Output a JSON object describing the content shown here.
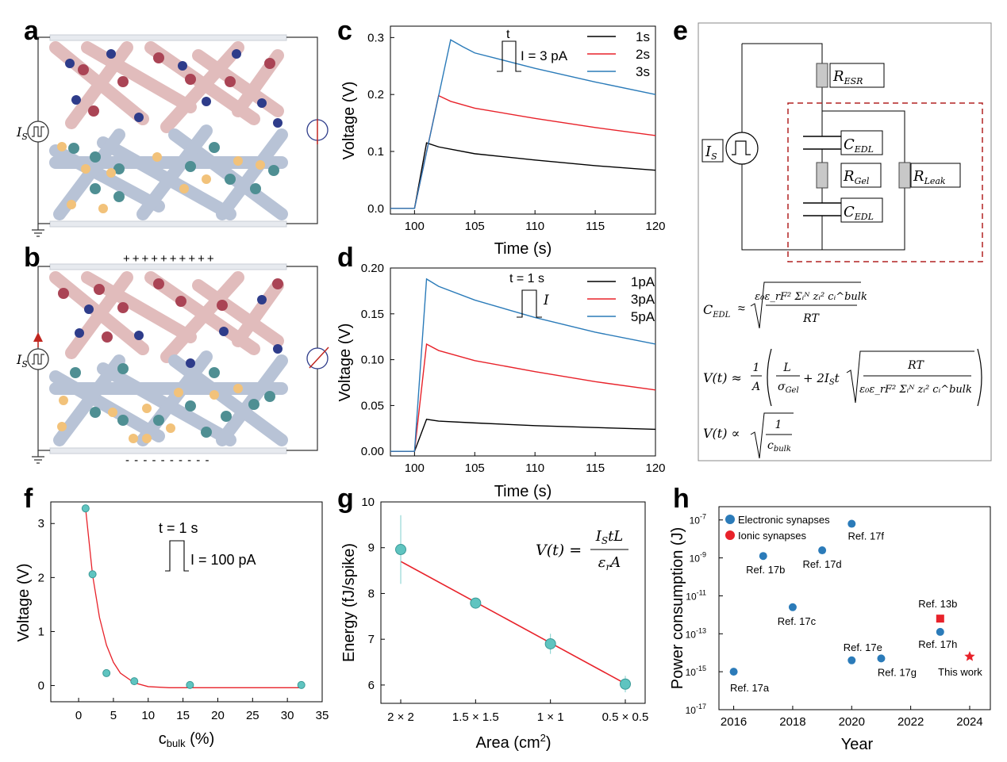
{
  "panels": {
    "a": {
      "letter": "a",
      "source_label": "I",
      "source_sub": "S"
    },
    "b": {
      "letter": "b",
      "source_label": "I",
      "source_sub": "S",
      "top_charges": "++++++++++",
      "bottom_charges": "- - - - - - - - - -"
    },
    "c": {
      "letter": "c",
      "xlabel": "Time (s)",
      "ylabel": "Voltage (V)",
      "inset_t": "t",
      "inset_label": "I = 3 pA",
      "xticks": [
        "100",
        "105",
        "110",
        "115",
        "120"
      ],
      "yticks": [
        "0.0",
        "0.1",
        "0.2",
        "0.3"
      ],
      "legend": [
        "1s",
        "2s",
        "3s"
      ]
    },
    "d": {
      "letter": "d",
      "xlabel": "Time (s)",
      "ylabel": "Voltage (V)",
      "inset_t": "t = 1 s",
      "inset_label": "I",
      "xticks": [
        "100",
        "105",
        "110",
        "115",
        "120"
      ],
      "yticks": [
        "0.00",
        "0.05",
        "0.10",
        "0.15",
        "0.20"
      ],
      "legend": [
        "1pA",
        "3pA",
        "5pA"
      ]
    },
    "e": {
      "letter": "e",
      "r_esr": "R",
      "r_esr_sub": "ESR",
      "c_edl": "C",
      "c_edl_sub": "EDL",
      "r_gel": "R",
      "r_gel_sub": "Gel",
      "r_leak": "R",
      "r_leak_sub": "Leak",
      "is": "I",
      "is_sub": "S",
      "eq1_lhs": "C",
      "eq1_lhs_sub": "EDL",
      "eq1_op": "≈",
      "eq1_num": "ε₀ε_rF² Σᵢᴺ zᵢ² cᵢ^bulk",
      "eq1_den": "RT",
      "eq2_lhs": "V(t) ≈",
      "eq2_frac_num": "1",
      "eq2_frac_den": "A",
      "eq2_l_num": "L",
      "eq2_l_den": "σ",
      "eq2_l_den_sub": "Gel",
      "eq2_mid": "+ 2I",
      "eq2_mid_sub": "S",
      "eq2_t": "t",
      "eq2_rt": "RT",
      "eq2_den": "ε₀ε_rF² Σᵢᴺ zᵢ² cᵢ^bulk",
      "eq3_lhs": "V(t) ∝",
      "eq3_num": "1",
      "eq3_den": "c",
      "eq3_den_sub": "bulk"
    },
    "f": {
      "letter": "f",
      "xlabel": "c",
      "xlabel_sub": "bulk",
      "xlabel_unit": " (%)",
      "ylabel": "Voltage (V)",
      "inset_t": "t = 1 s",
      "inset_label": "I = 100 pA",
      "xticks": [
        "0",
        "5",
        "10",
        "15",
        "20",
        "25",
        "30",
        "35"
      ],
      "yticks": [
        "0",
        "1",
        "2",
        "3"
      ]
    },
    "g": {
      "letter": "g",
      "xlabel": "Area (cm",
      "xlabel_sup": "2",
      "xlabel_end": ")",
      "ylabel": "Energy (fJ/spike)",
      "xticks": [
        "2 × 2",
        "1.5 × 1.5",
        "1 × 1",
        "0.5 × 0.5"
      ],
      "yticks": [
        "6",
        "7",
        "8",
        "9",
        "10"
      ],
      "eq_lhs": "V(t) =",
      "eq_num": "I",
      "eq_num_sub": "S",
      "eq_num_rest": "tL",
      "eq_den": "ε",
      "eq_den_sub": "r",
      "eq_den_rest": "A"
    },
    "h": {
      "letter": "h",
      "xlabel": "Year",
      "ylabel": "Power consumption (J)",
      "xticks": [
        "2016",
        "2018",
        "2020",
        "2022",
        "2024"
      ],
      "yticks_base": [
        "10",
        "10",
        "10",
        "10",
        "10",
        "10"
      ],
      "yticks_exp": [
        "-7",
        "-9",
        "-11",
        "-13",
        "-15",
        "-17"
      ],
      "legend": [
        "Electronic synapses",
        "Ionic synapses"
      ],
      "labels": [
        "Ref. 17f",
        "Ref. 17b",
        "Ref. 17d",
        "Ref. 17c",
        "Ref. 13b",
        "Ref. 17e",
        "Ref. 17h",
        "Ref. 17g",
        "This work",
        "Ref. 17a"
      ]
    }
  },
  "chart_data": [
    {
      "panel": "c",
      "type": "line",
      "title": "",
      "xlabel": "Time (s)",
      "ylabel": "Voltage (V)",
      "xlim": [
        98,
        120
      ],
      "ylim": [
        -0.01,
        0.32
      ],
      "series": [
        {
          "name": "1s",
          "color": "#000000",
          "x": [
            98,
            100,
            101,
            102,
            105,
            110,
            115,
            120
          ],
          "y": [
            0.0,
            0.0,
            0.115,
            0.108,
            0.096,
            0.085,
            0.075,
            0.067
          ]
        },
        {
          "name": "2s",
          "color": "#e8222a",
          "x": [
            98,
            100,
            102,
            103,
            105,
            110,
            115,
            120
          ],
          "y": [
            0.0,
            0.0,
            0.198,
            0.188,
            0.176,
            0.158,
            0.142,
            0.128
          ]
        },
        {
          "name": "3s",
          "color": "#2b7bb9",
          "x": [
            98,
            100,
            103,
            104,
            105,
            110,
            115,
            120
          ],
          "y": [
            0.0,
            0.0,
            0.296,
            0.284,
            0.273,
            0.246,
            0.222,
            0.2
          ]
        }
      ]
    },
    {
      "panel": "d",
      "type": "line",
      "title": "",
      "xlabel": "Time (s)",
      "ylabel": "Voltage (V)",
      "xlim": [
        98,
        120
      ],
      "ylim": [
        -0.005,
        0.2
      ],
      "series": [
        {
          "name": "1pA",
          "color": "#000000",
          "x": [
            98,
            100,
            101,
            102,
            105,
            110,
            115,
            120
          ],
          "y": [
            0.0,
            0.0,
            0.035,
            0.033,
            0.031,
            0.028,
            0.026,
            0.024
          ]
        },
        {
          "name": "3pA",
          "color": "#e8222a",
          "x": [
            98,
            100,
            101,
            102,
            105,
            110,
            115,
            120
          ],
          "y": [
            0.0,
            0.0,
            0.117,
            0.11,
            0.099,
            0.087,
            0.076,
            0.067
          ]
        },
        {
          "name": "5pA",
          "color": "#2b7bb9",
          "x": [
            98,
            100,
            101,
            102,
            105,
            110,
            115,
            120
          ],
          "y": [
            0.0,
            0.0,
            0.188,
            0.18,
            0.165,
            0.146,
            0.13,
            0.117
          ]
        }
      ]
    },
    {
      "panel": "f",
      "type": "scatter",
      "title": "",
      "xlabel": "c_bulk (%)",
      "ylabel": "Voltage (V)",
      "xlim": [
        -4,
        35
      ],
      "ylim": [
        -0.3,
        3.4
      ],
      "series": [
        {
          "name": "data",
          "color": "#5fc4c0",
          "x": [
            1,
            2,
            4,
            8,
            16,
            32
          ],
          "y": [
            3.28,
            2.06,
            0.23,
            0.08,
            0.01,
            0.01
          ]
        },
        {
          "name": "fit",
          "color": "#e8222a",
          "x": [
            1,
            2,
            3,
            4,
            5,
            6,
            8,
            10,
            13,
            16,
            20,
            25,
            32
          ],
          "y": [
            3.28,
            2.05,
            1.26,
            0.75,
            0.43,
            0.23,
            0.05,
            -0.02,
            -0.04,
            -0.04,
            -0.04,
            -0.04,
            -0.04
          ]
        }
      ]
    },
    {
      "panel": "g",
      "type": "scatter",
      "title": "",
      "xlabel": "Area (cm2)",
      "ylabel": "Energy (fJ/spike)",
      "categories": [
        "2 × 2",
        "1.5 × 1.5",
        "1 × 1",
        "0.5 × 0.5"
      ],
      "ylim": [
        5.6,
        10
      ],
      "series": [
        {
          "name": "data",
          "color": "#5fc4c0",
          "values": [
            8.96,
            7.79,
            6.9,
            6.02
          ],
          "errors": [
            0.75,
            0.05,
            0.22,
            0.18
          ]
        },
        {
          "name": "fit",
          "color": "#e8222a",
          "values": [
            8.7,
            7.81,
            6.92,
            6.03
          ]
        }
      ]
    },
    {
      "panel": "h",
      "type": "scatter",
      "title": "",
      "xlabel": "Year",
      "ylabel": "Power consumption (J)",
      "xlim": [
        2015.5,
        2024.7
      ],
      "ylim_log10": [
        -17,
        -6.3
      ],
      "series": [
        {
          "name": "Electronic synapses",
          "color": "#2b7bb9",
          "x": [
            2016,
            2017,
            2018,
            2019,
            2020,
            2020,
            2021,
            2023
          ],
          "log10_y": [
            -15,
            -8.9,
            -11.6,
            -8.6,
            -7.2,
            -14.4,
            -14.3,
            -12.9
          ],
          "labels": [
            "Ref. 17a",
            "Ref. 17b",
            "Ref. 17c",
            "Ref. 17d",
            "Ref. 17f",
            "Ref. 17e",
            "Ref. 17g",
            "Ref. 17h"
          ]
        },
        {
          "name": "Ionic synapses",
          "color": "#e8222a",
          "x": [
            2023,
            2024
          ],
          "log10_y": [
            -12.2,
            -14.2
          ],
          "labels": [
            "Ref. 13b",
            "This work"
          ]
        }
      ]
    }
  ]
}
